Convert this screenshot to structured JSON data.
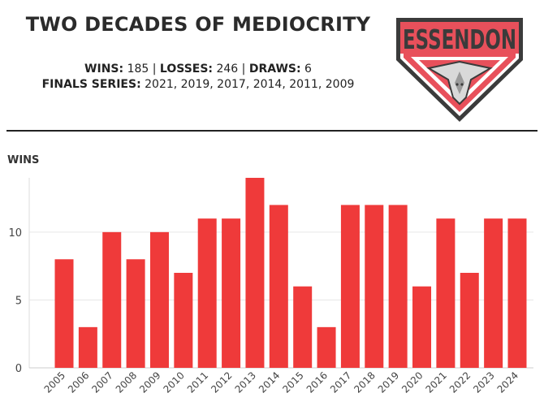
{
  "header": {
    "title": "TWO DECADES OF MEDIOCRITY",
    "wins_label": "WINS:",
    "wins_value": "185",
    "losses_label": "LOSSES:",
    "losses_value": "246",
    "draws_label": "DRAWS:",
    "draws_value": "6",
    "finals_label": "FINALS SERIES:",
    "finals_value": "2021, 2019, 2017, 2014, 2011, 2009",
    "separator": "|"
  },
  "logo": {
    "text": "ESSENDON"
  },
  "colors": {
    "bar": "#ef3a3a",
    "logo_red": "#e8505b",
    "logo_dark": "#3b3b3b",
    "text": "#222222"
  },
  "chart_data": {
    "type": "bar",
    "title": "TWO DECADES OF MEDIOCRITY",
    "ylabel": "WINS",
    "xlabel": "",
    "categories": [
      "2005",
      "2006",
      "2007",
      "2008",
      "2009",
      "2010",
      "2011",
      "2012",
      "2013",
      "2014",
      "2015",
      "2016",
      "2017",
      "2018",
      "2019",
      "2020",
      "2021",
      "2022",
      "2023",
      "2024"
    ],
    "values": [
      8,
      3,
      10,
      8,
      10,
      7,
      11,
      11,
      14,
      12,
      6,
      3,
      12,
      12,
      12,
      6,
      11,
      7,
      11,
      11
    ],
    "ylim": [
      0,
      14
    ],
    "yticks": [
      0,
      5,
      10
    ],
    "grid": "horizontal"
  }
}
